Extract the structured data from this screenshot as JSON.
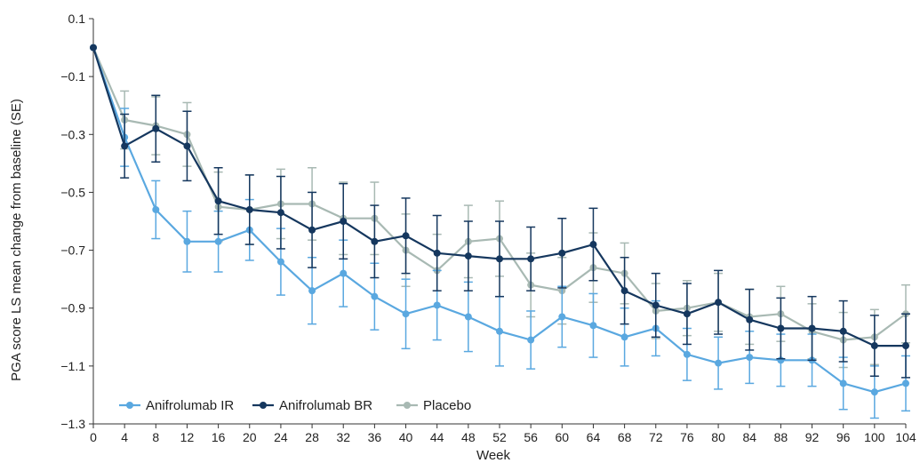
{
  "chart_data": {
    "type": "line",
    "xlabel": "Week",
    "ylabel": "PGA score LS mean change from baseline (SE)",
    "x": [
      0,
      4,
      8,
      12,
      16,
      20,
      24,
      28,
      32,
      36,
      40,
      44,
      48,
      52,
      56,
      60,
      64,
      68,
      72,
      76,
      80,
      84,
      88,
      92,
      96,
      100,
      104
    ],
    "xlim": [
      0,
      104
    ],
    "ylim": [
      -1.3,
      0.1
    ],
    "yticks": [
      0.1,
      -0.1,
      -0.3,
      -0.5,
      -0.7,
      -0.9,
      -1.1,
      -1.3
    ],
    "ytick_labels": [
      "0.1",
      "−0.1",
      "−0.3",
      "−0.5",
      "−0.7",
      "−0.9",
      "−1.1",
      "−1.3"
    ],
    "grid": false,
    "legend_position": "bottom-left",
    "series": [
      {
        "name": "Anifrolumab IR",
        "color": "#5aa8e0",
        "values": [
          0.0,
          -0.31,
          -0.56,
          -0.67,
          -0.67,
          -0.63,
          -0.74,
          -0.84,
          -0.78,
          -0.86,
          -0.92,
          -0.89,
          -0.93,
          -0.98,
          -1.01,
          -0.93,
          -0.96,
          -1.0,
          -0.97,
          -1.06,
          -1.09,
          -1.07,
          -1.08,
          -1.08,
          -1.16,
          -1.19,
          -1.16
        ],
        "se": [
          0,
          0.1,
          0.1,
          0.105,
          0.105,
          0.105,
          0.115,
          0.115,
          0.115,
          0.115,
          0.12,
          0.12,
          0.12,
          0.12,
          0.1,
          0.105,
          0.11,
          0.1,
          0.095,
          0.09,
          0.09,
          0.09,
          0.09,
          0.09,
          0.09,
          0.09,
          0.095
        ]
      },
      {
        "name": "Anifrolumab BR",
        "color": "#15375e",
        "values": [
          0.0,
          -0.34,
          -0.28,
          -0.34,
          -0.53,
          -0.56,
          -0.57,
          -0.63,
          -0.6,
          -0.67,
          -0.65,
          -0.71,
          -0.72,
          -0.73,
          -0.73,
          -0.71,
          -0.68,
          -0.84,
          -0.89,
          -0.92,
          -0.88,
          -0.94,
          -0.97,
          -0.97,
          -0.98,
          -1.03,
          -1.03
        ],
        "se": [
          0,
          0.11,
          0.115,
          0.12,
          0.115,
          0.12,
          0.125,
          0.13,
          0.13,
          0.125,
          0.13,
          0.13,
          0.12,
          0.13,
          0.11,
          0.12,
          0.125,
          0.115,
          0.11,
          0.105,
          0.11,
          0.105,
          0.105,
          0.11,
          0.105,
          0.105,
          0.11
        ]
      },
      {
        "name": "Placebo",
        "color": "#a8b9b3",
        "values": [
          0.0,
          -0.25,
          -0.27,
          -0.3,
          -0.55,
          -0.56,
          -0.54,
          -0.54,
          -0.59,
          -0.59,
          -0.7,
          -0.77,
          -0.67,
          -0.66,
          -0.82,
          -0.84,
          -0.76,
          -0.78,
          -0.91,
          -0.9,
          -0.88,
          -0.93,
          -0.92,
          -0.98,
          -1.01,
          -1.0,
          -0.92
        ],
        "se": [
          0,
          0.1,
          0.1,
          0.11,
          0.12,
          0.12,
          0.12,
          0.125,
          0.125,
          0.125,
          0.125,
          0.125,
          0.125,
          0.13,
          0.11,
          0.115,
          0.12,
          0.105,
          0.095,
          0.095,
          0.1,
          0.095,
          0.095,
          0.095,
          0.095,
          0.095,
          0.1
        ]
      }
    ]
  }
}
